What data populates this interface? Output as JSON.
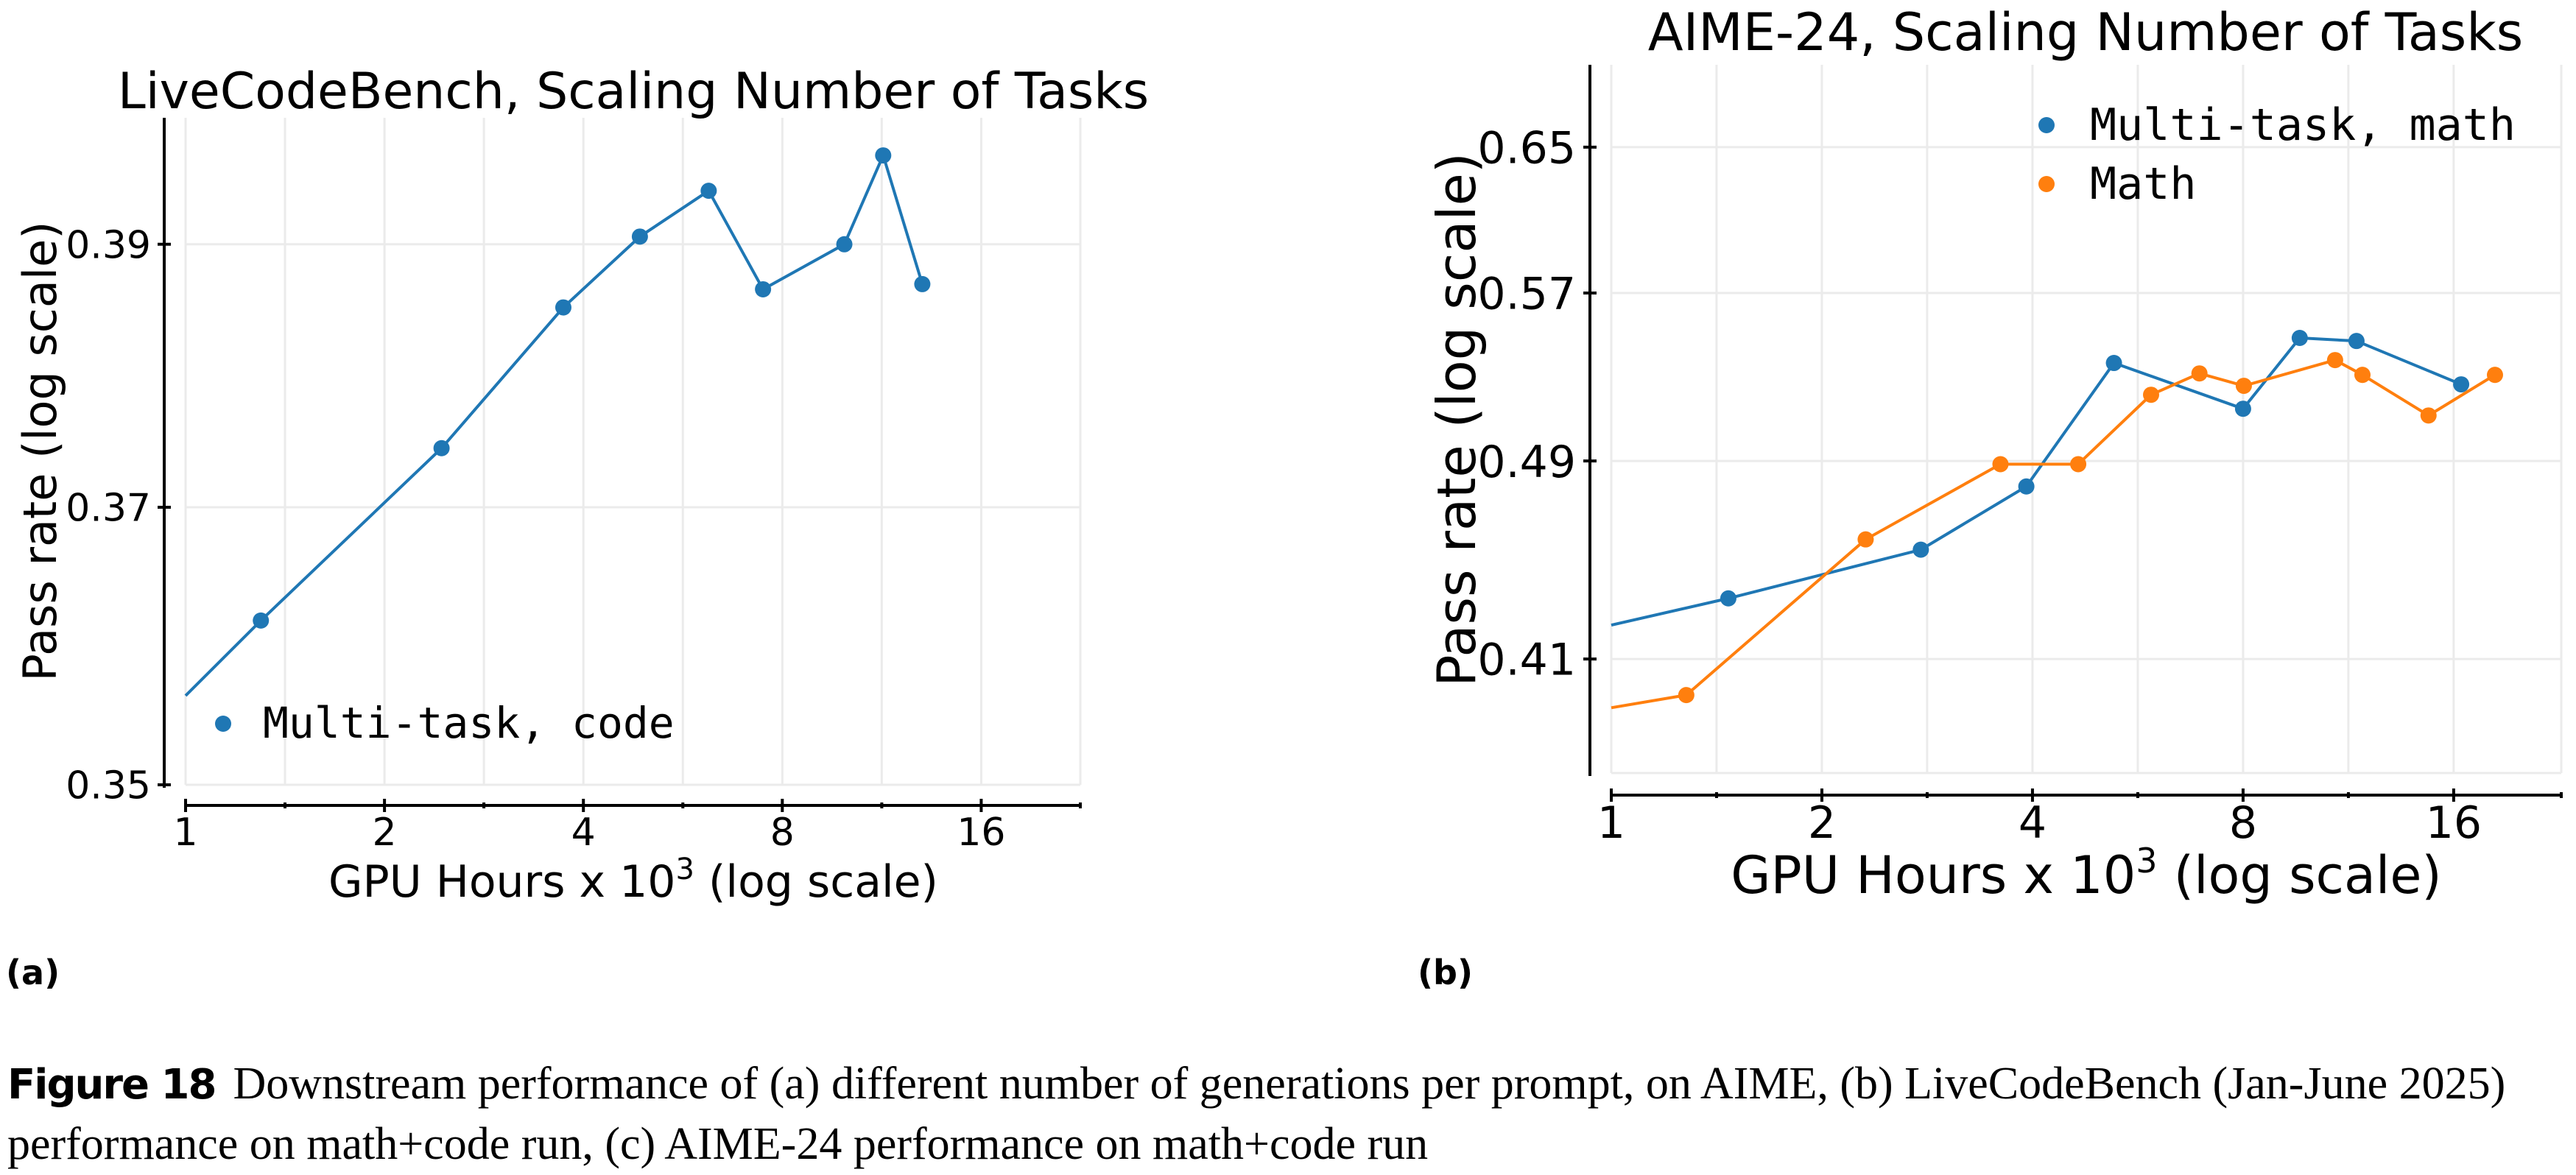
{
  "panels": [
    {
      "label": "(a)"
    },
    {
      "label": "(b)"
    }
  ],
  "caption": {
    "figure_label": "Figure 18",
    "text": "Downstream performance of (a) different number of generations per prompt, on AIME, (b) LiveCodeBench (Jan-June 2025) performance on math+code run, (c) AIME-24 performance on math+code run"
  },
  "chart_data": [
    {
      "type": "line",
      "title": "LiveCodeBench, Scaling Number of Tasks",
      "xlabel": "GPU Hours x 10",
      "xlabel_sup": "3",
      "xlabel_suffix": " (log scale)",
      "ylabel": "Pass rate (log scale)",
      "xscale": "log2",
      "yscale": "log",
      "xlim": [
        1,
        22.6
      ],
      "ylim": [
        0.35,
        0.4
      ],
      "xticks": [
        1,
        2,
        4,
        8,
        16
      ],
      "xtick_labels": [
        "1",
        "2",
        "4",
        "8",
        "16"
      ],
      "xminor": [
        1.414,
        2.828,
        5.657,
        11.314
      ],
      "yticks": [
        0.35,
        0.37,
        0.39
      ],
      "ytick_labels": [
        "0.35",
        "0.37",
        "0.39"
      ],
      "grid": true,
      "legend_position": "bottom-left",
      "series": [
        {
          "name": "Multi-task, code",
          "color": "#1f77b4",
          "line_start": {
            "x": 1.0,
            "y": 0.3563
          },
          "x": [
            1.3,
            2.44,
            3.73,
            4.87,
            6.19,
            7.48,
            9.93,
            11.37,
            13.03
          ],
          "y": [
            0.3617,
            0.3744,
            0.3851,
            0.3906,
            0.3942,
            0.3865,
            0.39,
            0.397,
            0.3869
          ]
        }
      ]
    },
    {
      "type": "line",
      "title": "AIME-24, Scaling Number of Tasks",
      "xlabel": "GPU Hours x 10",
      "xlabel_sup": "3",
      "xlabel_suffix": " (log scale)",
      "ylabel": "Pass rate (log scale)",
      "xscale": "log2",
      "yscale": "log",
      "xlim": [
        1,
        22.8
      ],
      "ylim": [
        0.37,
        0.7
      ],
      "xticks": [
        1,
        2,
        4,
        8,
        16
      ],
      "xtick_labels": [
        "1",
        "2",
        "4",
        "8",
        "16"
      ],
      "xminor": [
        1.414,
        2.828,
        5.657,
        11.314
      ],
      "yticks": [
        0.41,
        0.49,
        0.57,
        0.65
      ],
      "ytick_labels": [
        "0.41",
        "0.49",
        "0.57",
        "0.65"
      ],
      "grid": true,
      "legend_position": "top-right",
      "series": [
        {
          "name": "Multi-task, math",
          "color": "#1f77b4",
          "line_start": {
            "x": 1.0,
            "y": 0.4227
          },
          "x": [
            1.47,
            2.77,
            3.92,
            5.23,
            8.0,
            9.64,
            11.62,
            16.4
          ],
          "y": [
            0.433,
            0.4524,
            0.4789,
            0.5352,
            0.5136,
            0.5474,
            0.5459,
            0.525
          ]
        },
        {
          "name": "Math",
          "color": "#ff7f0e",
          "line_start": {
            "x": 1.0,
            "y": 0.3924
          },
          "x": [
            1.28,
            2.31,
            3.6,
            4.65,
            5.91,
            6.93,
            8.02,
            10.83,
            11.85,
            14.73,
            18.33
          ],
          "y": [
            0.3969,
            0.4566,
            0.4886,
            0.4886,
            0.5201,
            0.5302,
            0.5243,
            0.5366,
            0.5295,
            0.5105,
            0.5295
          ]
        }
      ]
    }
  ]
}
